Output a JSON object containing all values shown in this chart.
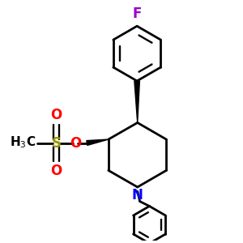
{
  "background_color": "#ffffff",
  "figure_size": [
    3.0,
    3.0
  ],
  "dpi": 100,
  "atom_colors": {
    "F": "#9900cc",
    "S": "#999900",
    "O": "#ff0000",
    "N": "#0000ff",
    "C": "#000000"
  },
  "bond_color": "#000000",
  "bond_lw": 2.0
}
